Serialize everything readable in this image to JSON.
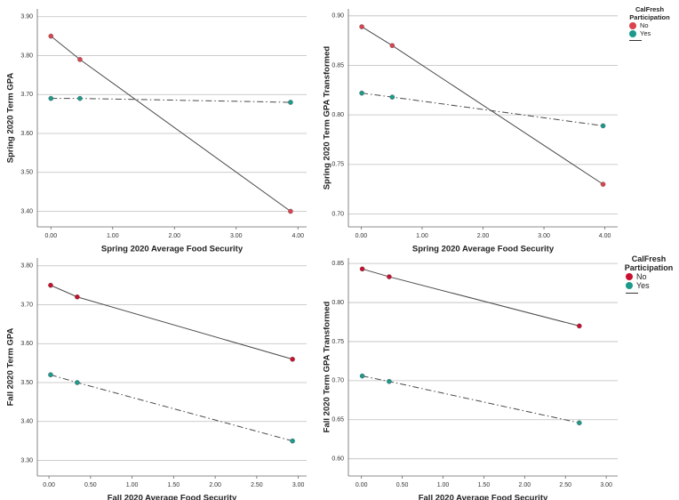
{
  "chart_data": [
    {
      "type": "line",
      "x_label": "Spring 2020 Average Food Security",
      "y_label": "Spring 2020 Term GPA",
      "x": [
        0.0,
        0.47,
        3.88
      ],
      "series": [
        {
          "name": "No",
          "color": "#d9444f",
          "linestyle": "solid",
          "values": [
            3.85,
            3.79,
            3.4
          ]
        },
        {
          "name": "Yes",
          "color": "#1c9a8b",
          "linestyle": "dashdot",
          "values": [
            3.69,
            3.69,
            3.68
          ]
        }
      ],
      "xlim": [
        -0.22,
        4.14
      ],
      "ylim": [
        3.36,
        3.92
      ],
      "xticks": [
        {
          "value": 0,
          "label": "0.00"
        },
        {
          "value": 1,
          "label": "1.00"
        },
        {
          "value": 2,
          "label": "2.00"
        },
        {
          "value": 3,
          "label": "3.00"
        },
        {
          "value": 4,
          "label": "4.00"
        }
      ],
      "yticks": [
        {
          "value": 3.4,
          "label": "3.40"
        },
        {
          "value": 3.5,
          "label": "3.50"
        },
        {
          "value": 3.6,
          "label": "3.60"
        },
        {
          "value": 3.7,
          "label": "3.70"
        },
        {
          "value": 3.8,
          "label": "3.80"
        },
        {
          "value": 3.9,
          "label": "3.90"
        }
      ],
      "grid": true
    },
    {
      "type": "line",
      "x_label": "Spring 2020 Average Food Security",
      "y_label": "Spring 2020 Term GPA Transformed",
      "legend_title": "CalFresh Participation",
      "legend": "right",
      "x": [
        0.01,
        0.51,
        3.97
      ],
      "series": [
        {
          "name": "No",
          "color": "#d9444f",
          "linestyle": "solid",
          "values": [
            0.889,
            0.87,
            0.73
          ]
        },
        {
          "name": "Yes",
          "color": "#1c9a8b",
          "linestyle": "dashdot",
          "values": [
            0.822,
            0.818,
            0.789
          ]
        }
      ],
      "xlim": [
        -0.21,
        4.21
      ],
      "ylim": [
        0.687,
        0.907
      ],
      "xticks": [
        {
          "value": 0,
          "label": "0.00"
        },
        {
          "value": 1,
          "label": "1.00"
        },
        {
          "value": 2,
          "label": "2.00"
        },
        {
          "value": 3,
          "label": "3.00"
        },
        {
          "value": 4,
          "label": "4.00"
        }
      ],
      "yticks": [
        {
          "value": 0.7,
          "label": "0.70"
        },
        {
          "value": 0.75,
          "label": "0.75"
        },
        {
          "value": 0.8,
          "label": "0.80"
        },
        {
          "value": 0.85,
          "label": "0.85"
        },
        {
          "value": 0.9,
          "label": "0.90"
        }
      ],
      "grid": true
    },
    {
      "type": "line",
      "x_label": "Fall 2020 Average Food Security",
      "y_label": "Fall 2020 Term GPA",
      "x": [
        0.02,
        0.34,
        2.93
      ],
      "series": [
        {
          "name": "No",
          "color": "#c8102e",
          "linestyle": "solid",
          "values": [
            3.75,
            3.72,
            3.56
          ]
        },
        {
          "name": "Yes",
          "color": "#1c9a8b",
          "linestyle": "dashdot",
          "values": [
            3.52,
            3.5,
            3.35
          ]
        }
      ],
      "xlim": [
        -0.14,
        3.1
      ],
      "ylim": [
        3.26,
        3.82
      ],
      "xticks": [
        {
          "value": 0,
          "label": "0.00"
        },
        {
          "value": 0.5,
          "label": "0.50"
        },
        {
          "value": 1,
          "label": "1.00"
        },
        {
          "value": 1.5,
          "label": "1.50"
        },
        {
          "value": 2,
          "label": "2.00"
        },
        {
          "value": 2.5,
          "label": "2.50"
        },
        {
          "value": 3,
          "label": "3.00"
        }
      ],
      "yticks": [
        {
          "value": 3.3,
          "label": "3.30"
        },
        {
          "value": 3.4,
          "label": "3.40"
        },
        {
          "value": 3.5,
          "label": "3.50"
        },
        {
          "value": 3.6,
          "label": "3.60"
        },
        {
          "value": 3.7,
          "label": "3.70"
        },
        {
          "value": 3.8,
          "label": "3.80"
        }
      ],
      "grid": true
    },
    {
      "type": "line",
      "x_label": "Fall 2020 Average Food Security",
      "y_label": "Fall 2020 Term GPA Transformed",
      "legend_title": "CalFresh Participation",
      "legend": "right",
      "x": [
        0.01,
        0.34,
        2.67
      ],
      "series": [
        {
          "name": "No",
          "color": "#c8102e",
          "linestyle": "solid",
          "values": [
            0.843,
            0.833,
            0.77
          ]
        },
        {
          "name": "Yes",
          "color": "#1c9a8b",
          "linestyle": "dashdot",
          "values": [
            0.706,
            0.699,
            0.646
          ]
        }
      ],
      "xlim": [
        -0.16,
        3.14
      ],
      "ylim": [
        0.578,
        0.857
      ],
      "xticks": [
        {
          "value": 0,
          "label": "0.00"
        },
        {
          "value": 0.5,
          "label": "0.50"
        },
        {
          "value": 1,
          "label": "1.00"
        },
        {
          "value": 1.5,
          "label": "1.50"
        },
        {
          "value": 2,
          "label": "2.00"
        },
        {
          "value": 2.5,
          "label": "2.50"
        },
        {
          "value": 3,
          "label": "3.00"
        }
      ],
      "yticks": [
        {
          "value": 0.6,
          "label": "0.60"
        },
        {
          "value": 0.65,
          "label": "0.65"
        },
        {
          "value": 0.7,
          "label": "0.70"
        },
        {
          "value": 0.75,
          "label": "0.75"
        },
        {
          "value": 0.8,
          "label": "0.80"
        },
        {
          "value": 0.85,
          "label": "0.85"
        }
      ],
      "grid": true
    }
  ]
}
